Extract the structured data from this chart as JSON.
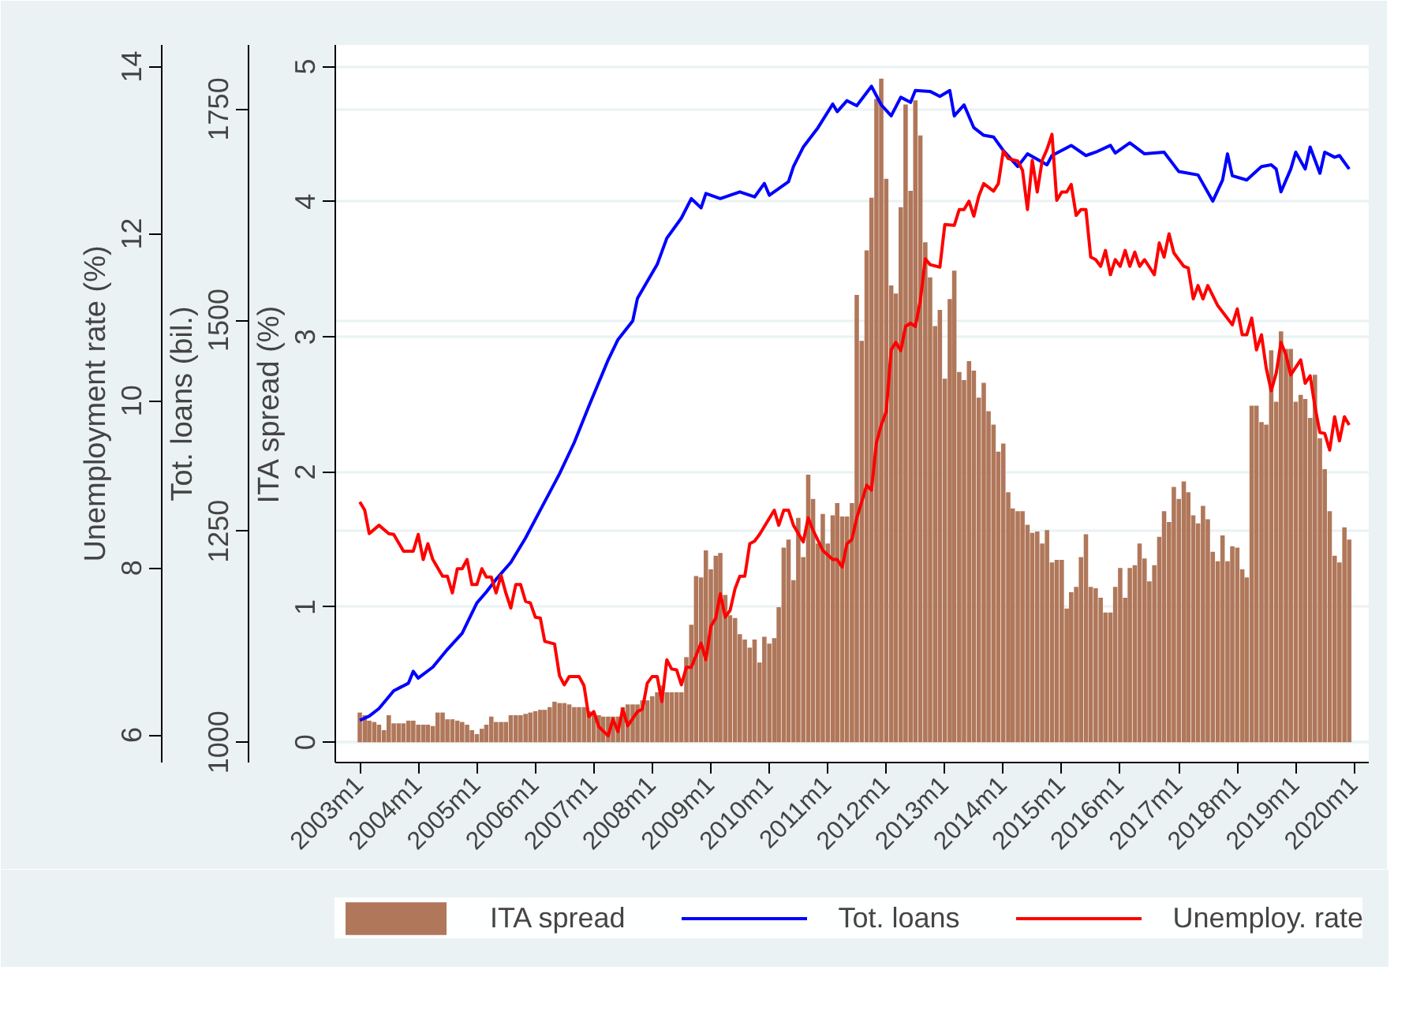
{
  "chart_data": {
    "type": "bar",
    "x": [
      "2003-01",
      "2003-02",
      "2003-03",
      "2003-04",
      "2003-05",
      "2003-06",
      "2003-07",
      "2003-08",
      "2003-09",
      "2003-10",
      "2003-11",
      "2003-12",
      "2004-01",
      "2004-02",
      "2004-03",
      "2004-04",
      "2004-05",
      "2004-06",
      "2004-07",
      "2004-08",
      "2004-09",
      "2004-10",
      "2004-11",
      "2004-12",
      "2005-01",
      "2005-02",
      "2005-03",
      "2005-04",
      "2005-05",
      "2005-06",
      "2005-07",
      "2005-08",
      "2005-09",
      "2005-10",
      "2005-11",
      "2005-12",
      "2006-01",
      "2006-02",
      "2006-03",
      "2006-04",
      "2006-05",
      "2006-06",
      "2006-07",
      "2006-08",
      "2006-09",
      "2006-10",
      "2006-11",
      "2006-12",
      "2007-01",
      "2007-02",
      "2007-03",
      "2007-04",
      "2007-05",
      "2007-06",
      "2007-07",
      "2007-08",
      "2007-09",
      "2007-10",
      "2007-11",
      "2007-12",
      "2008-01",
      "2008-02",
      "2008-03",
      "2008-04",
      "2008-05",
      "2008-06",
      "2008-07",
      "2008-08",
      "2008-09",
      "2008-10",
      "2008-11",
      "2008-12",
      "2009-01",
      "2009-02",
      "2009-03",
      "2009-04",
      "2009-05",
      "2009-06",
      "2009-07",
      "2009-08",
      "2009-09",
      "2009-10",
      "2009-11",
      "2009-12",
      "2010-01",
      "2010-02",
      "2010-03",
      "2010-04",
      "2010-05",
      "2010-06",
      "2010-07",
      "2010-08",
      "2010-09",
      "2010-10",
      "2010-11",
      "2010-12",
      "2011-01",
      "2011-02",
      "2011-03",
      "2011-04",
      "2011-05",
      "2011-06",
      "2011-07",
      "2011-08",
      "2011-09",
      "2011-10",
      "2011-11",
      "2011-12",
      "2012-01",
      "2012-02",
      "2012-03",
      "2012-04",
      "2012-05",
      "2012-06",
      "2012-07",
      "2012-08",
      "2012-09",
      "2012-10",
      "2012-11",
      "2012-12",
      "2013-01",
      "2013-02",
      "2013-03",
      "2013-04",
      "2013-05",
      "2013-06",
      "2013-07",
      "2013-08",
      "2013-09",
      "2013-10",
      "2013-11",
      "2013-12",
      "2014-01",
      "2014-02",
      "2014-03",
      "2014-04",
      "2014-05",
      "2014-06",
      "2014-07",
      "2014-08",
      "2014-09",
      "2014-10",
      "2014-11",
      "2014-12",
      "2015-01",
      "2015-02",
      "2015-03",
      "2015-04",
      "2015-05",
      "2015-06",
      "2015-07",
      "2015-08",
      "2015-09",
      "2015-10",
      "2015-11",
      "2015-12",
      "2016-01",
      "2016-02",
      "2016-03",
      "2016-04",
      "2016-05",
      "2016-06",
      "2016-07",
      "2016-08",
      "2016-09",
      "2016-10",
      "2016-11",
      "2016-12",
      "2017-01",
      "2017-02",
      "2017-03",
      "2017-04",
      "2017-05",
      "2017-06",
      "2017-07",
      "2017-08",
      "2017-09",
      "2017-10",
      "2017-11",
      "2017-12",
      "2018-01",
      "2018-02",
      "2018-03",
      "2018-04",
      "2018-05",
      "2018-06",
      "2018-07",
      "2018-08",
      "2018-09",
      "2018-10",
      "2018-11",
      "2018-12",
      "2019-01",
      "2019-02",
      "2019-03",
      "2019-04",
      "2019-05",
      "2019-06",
      "2019-07",
      "2019-08",
      "2019-09",
      "2019-10",
      "2019-11",
      "2019-12"
    ],
    "series": [
      {
        "name": "ITA spread",
        "color": "#b0775a",
        "values": [
          0.22,
          0.2,
          0.16,
          0.15,
          0.13,
          0.09,
          0.2,
          0.14,
          0.14,
          0.14,
          0.16,
          0.16,
          0.13,
          0.13,
          0.13,
          0.12,
          0.22,
          0.22,
          0.17,
          0.17,
          0.16,
          0.15,
          0.13,
          0.09,
          0.06,
          0.1,
          0.13,
          0.19,
          0.15,
          0.15,
          0.15,
          0.2,
          0.2,
          0.2,
          0.21,
          0.22,
          0.23,
          0.24,
          0.24,
          0.26,
          0.3,
          0.29,
          0.29,
          0.28,
          0.26,
          0.26,
          0.26,
          0.23,
          0.2,
          0.2,
          0.19,
          0.19,
          0.19,
          0.19,
          0.26,
          0.28,
          0.28,
          0.28,
          0.31,
          0.31,
          0.34,
          0.37,
          0.42,
          0.37,
          0.37,
          0.37,
          0.37,
          0.63,
          0.87,
          1.23,
          1.22,
          1.42,
          1.28,
          1.38,
          1.4,
          1.09,
          0.94,
          0.92,
          0.8,
          0.76,
          0.7,
          0.76,
          0.59,
          0.78,
          0.73,
          0.77,
          1.0,
          1.44,
          1.5,
          1.2,
          1.66,
          1.37,
          1.98,
          1.8,
          1.47,
          1.69,
          1.47,
          1.68,
          1.77,
          1.67,
          1.67,
          1.77,
          3.31,
          2.97,
          3.64,
          4.03,
          4.76,
          4.91,
          4.17,
          3.38,
          3.32,
          3.96,
          4.72,
          4.08,
          4.75,
          4.49,
          3.7,
          3.44,
          3.08,
          3.2,
          2.69,
          3.28,
          3.49,
          2.74,
          2.68,
          2.82,
          2.75,
          2.55,
          2.66,
          2.45,
          2.35,
          2.15,
          2.21,
          1.85,
          1.73,
          1.71,
          1.71,
          1.61,
          1.55,
          1.56,
          1.47,
          1.57,
          1.33,
          1.35,
          1.35,
          0.99,
          1.11,
          1.15,
          1.37,
          1.54,
          1.15,
          1.14,
          1.07,
          0.96,
          0.96,
          1.15,
          1.29,
          1.07,
          1.29,
          1.31,
          1.47,
          1.36,
          1.19,
          1.31,
          1.52,
          1.71,
          1.63,
          1.89,
          1.8,
          1.93,
          1.85,
          1.68,
          1.62,
          1.75,
          1.65,
          1.41,
          1.34,
          1.53,
          1.34,
          1.45,
          1.44,
          1.28,
          1.22,
          2.49,
          2.49,
          2.37,
          2.35,
          2.9,
          2.52,
          3.04,
          2.91,
          2.91,
          2.52,
          2.57,
          2.54,
          2.4,
          2.72,
          2.25,
          2.02,
          1.71,
          1.38,
          1.33,
          1.59,
          1.5
        ]
      },
      {
        "name": "Tot. loans",
        "type": "line",
        "axis": "y2",
        "color": "#0000ff",
        "x": [
          "2003-01",
          "2003-03",
          "2003-05",
          "2003-08",
          "2003-11",
          "2003-12",
          "2004-01",
          "2004-04",
          "2004-07",
          "2004-10",
          "2005-01",
          "2005-03",
          "2005-05",
          "2005-08",
          "2005-11",
          "2006-02",
          "2006-06",
          "2006-09",
          "2006-12",
          "2007-04",
          "2007-06",
          "2007-09",
          "2007-10",
          "2008-02",
          "2008-04",
          "2008-07",
          "2008-09",
          "2008-11",
          "2008-12",
          "2009-03",
          "2009-07",
          "2009-10",
          "2009-12",
          "2010-01",
          "2010-05",
          "2010-06",
          "2010-08",
          "2010-11",
          "2011-02",
          "2011-03",
          "2011-05",
          "2011-07",
          "2011-10",
          "2011-12",
          "2012-02",
          "2012-04",
          "2012-06",
          "2012-07",
          "2012-10",
          "2012-12",
          "2013-02",
          "2013-03",
          "2013-05",
          "2013-07",
          "2013-09",
          "2013-11",
          "2014-01",
          "2014-04",
          "2014-06",
          "2014-10",
          "2014-11",
          "2015-03",
          "2015-06",
          "2015-08",
          "2015-11",
          "2015-12",
          "2016-03",
          "2016-06",
          "2016-10",
          "2017-01",
          "2017-05",
          "2017-08",
          "2017-10",
          "2017-11",
          "2017-12",
          "2018-03",
          "2018-06",
          "2018-08",
          "2018-09",
          "2018-10",
          "2018-12",
          "2019-01",
          "2019-03",
          "2019-04",
          "2019-06",
          "2019-07",
          "2019-09",
          "2019-10",
          "2019-12"
        ],
        "values": [
          1026,
          1031,
          1040,
          1061,
          1070,
          1084,
          1076,
          1089,
          1110,
          1129,
          1165,
          1178,
          1193,
          1213,
          1242,
          1275,
          1318,
          1355,
          1398,
          1453,
          1477,
          1499,
          1526,
          1566,
          1597,
          1621,
          1644,
          1633,
          1650,
          1644,
          1652,
          1646,
          1662,
          1648,
          1664,
          1682,
          1705,
          1728,
          1756,
          1747,
          1760,
          1754,
          1777,
          1755,
          1742,
          1764,
          1758,
          1772,
          1771,
          1765,
          1772,
          1742,
          1755,
          1728,
          1719,
          1717,
          1701,
          1682,
          1697,
          1684,
          1695,
          1707,
          1695,
          1699,
          1707,
          1698,
          1710,
          1697,
          1699,
          1676,
          1672,
          1641,
          1666,
          1697,
          1671,
          1666,
          1682,
          1684,
          1679,
          1652,
          1679,
          1699,
          1679,
          1705,
          1674,
          1699,
          1693,
          1695,
          1679
        ]
      },
      {
        "name": "Unemploy. rate",
        "type": "line",
        "axis": "y3",
        "color": "#ff0000",
        "x": [
          "2003-01",
          "2003-02",
          "2003-03",
          "2003-05",
          "2003-07",
          "2003-08",
          "2003-10",
          "2003-12",
          "2004-01",
          "2004-02",
          "2004-03",
          "2004-04",
          "2004-06",
          "2004-07",
          "2004-08",
          "2004-09",
          "2004-10",
          "2004-11",
          "2004-12",
          "2005-01",
          "2005-02",
          "2005-03",
          "2005-04",
          "2005-05",
          "2005-06",
          "2005-07",
          "2005-08",
          "2005-09",
          "2005-10",
          "2005-11",
          "2005-12",
          "2006-01",
          "2006-02",
          "2006-03",
          "2006-05",
          "2006-06",
          "2006-07",
          "2006-08",
          "2006-10",
          "2006-11",
          "2006-12",
          "2007-01",
          "2007-02",
          "2007-04",
          "2007-05",
          "2007-06",
          "2007-07",
          "2007-08",
          "2007-10",
          "2007-11",
          "2007-12",
          "2008-01",
          "2008-02",
          "2008-03",
          "2008-04",
          "2008-05",
          "2008-06",
          "2008-07",
          "2008-08",
          "2008-09",
          "2008-11",
          "2008-12",
          "2009-01",
          "2009-02",
          "2009-03",
          "2009-04",
          "2009-05",
          "2009-06",
          "2009-07",
          "2009-08",
          "2009-09",
          "2009-10",
          "2009-11",
          "2010-02",
          "2010-03",
          "2010-04",
          "2010-05",
          "2010-06",
          "2010-08",
          "2010-09",
          "2010-10",
          "2010-12",
          "2011-02",
          "2011-03",
          "2011-04",
          "2011-05",
          "2011-06",
          "2011-07",
          "2011-08",
          "2011-09",
          "2011-10",
          "2011-11",
          "2011-12",
          "2012-01",
          "2012-02",
          "2012-03",
          "2012-04",
          "2012-05",
          "2012-06",
          "2012-07",
          "2012-08",
          "2012-09",
          "2012-10",
          "2012-12",
          "2013-01",
          "2013-03",
          "2013-04",
          "2013-05",
          "2013-06",
          "2013-07",
          "2013-08",
          "2013-09",
          "2013-11",
          "2013-12",
          "2014-01",
          "2014-02",
          "2014-04",
          "2014-05",
          "2014-06",
          "2014-07",
          "2014-08",
          "2014-09",
          "2014-10",
          "2014-11",
          "2014-12",
          "2015-01",
          "2015-02",
          "2015-03",
          "2015-04",
          "2015-05",
          "2015-06",
          "2015-07",
          "2015-08",
          "2015-09",
          "2015-10",
          "2015-11",
          "2015-12",
          "2016-01",
          "2016-02",
          "2016-03",
          "2016-04",
          "2016-05",
          "2016-06",
          "2016-08",
          "2016-09",
          "2016-10",
          "2016-11",
          "2016-12",
          "2017-02",
          "2017-03",
          "2017-04",
          "2017-05",
          "2017-06",
          "2017-07",
          "2017-09",
          "2017-12",
          "2018-01",
          "2018-02",
          "2018-03",
          "2018-04",
          "2018-05",
          "2018-06",
          "2018-07",
          "2018-08",
          "2018-09",
          "2018-10",
          "2018-11",
          "2018-12",
          "2019-02",
          "2019-03",
          "2019-04",
          "2019-05",
          "2019-06",
          "2019-07",
          "2019-08",
          "2019-09",
          "2019-10",
          "2019-11",
          "2019-12"
        ],
        "values": [
          8.79,
          8.69,
          8.41,
          8.51,
          8.41,
          8.4,
          8.2,
          8.2,
          8.4,
          8.1,
          8.29,
          8.1,
          7.9,
          7.9,
          7.7,
          7.99,
          7.99,
          8.1,
          7.8,
          7.8,
          7.99,
          7.89,
          7.89,
          7.7,
          7.91,
          7.7,
          7.52,
          7.8,
          7.8,
          7.6,
          7.58,
          7.41,
          7.4,
          7.12,
          7.09,
          6.71,
          6.6,
          6.7,
          6.7,
          6.59,
          6.22,
          6.28,
          6.1,
          5.99,
          6.19,
          6.04,
          6.31,
          6.11,
          6.28,
          6.31,
          6.62,
          6.7,
          6.7,
          6.4,
          6.9,
          6.79,
          6.78,
          6.6,
          6.81,
          6.81,
          7.1,
          6.9,
          7.3,
          7.4,
          7.69,
          7.41,
          7.49,
          7.75,
          7.9,
          7.9,
          8.29,
          8.32,
          8.4,
          8.69,
          8.51,
          8.69,
          8.69,
          8.51,
          8.31,
          8.6,
          8.45,
          8.21,
          8.1,
          8.1,
          8.01,
          8.29,
          8.34,
          8.6,
          8.79,
          8.99,
          8.93,
          9.5,
          9.71,
          9.87,
          10.61,
          10.7,
          10.6,
          10.89,
          10.93,
          10.89,
          11.2,
          11.7,
          11.63,
          11.6,
          12.11,
          12.1,
          12.29,
          12.29,
          12.39,
          12.21,
          12.45,
          12.6,
          12.51,
          12.6,
          12.99,
          12.9,
          12.87,
          12.76,
          12.29,
          12.88,
          12.5,
          12.88,
          13.01,
          13.19,
          12.4,
          12.5,
          12.5,
          12.59,
          12.22,
          12.29,
          12.29,
          11.72,
          11.69,
          11.61,
          11.8,
          11.51,
          11.69,
          11.61,
          11.8,
          11.61,
          11.78,
          11.61,
          11.69,
          11.51,
          11.89,
          11.72,
          12.0,
          11.77,
          11.61,
          11.59,
          11.22,
          11.38,
          11.22,
          11.38,
          11.14,
          10.91,
          11.1,
          10.79,
          10.79,
          10.99,
          10.61,
          10.79,
          10.39,
          10.12,
          10.33,
          10.7,
          10.55,
          10.31,
          10.49,
          10.21,
          10.3,
          9.93,
          9.62,
          9.61,
          9.41,
          9.81,
          9.52,
          9.81,
          9.71
        ]
      }
    ],
    "ylabel": "ITA spread (%)",
    "y2label": "Tot. loans (bil.)",
    "y3label": "Unemployment rate (%)",
    "xlim": [
      "2002-08",
      "2020-04"
    ],
    "xticks": [
      {
        "value": "2003-01",
        "label": "2003m1"
      },
      {
        "value": "2004-01",
        "label": "2004m1"
      },
      {
        "value": "2005-01",
        "label": "2005m1"
      },
      {
        "value": "2006-01",
        "label": "2006m1"
      },
      {
        "value": "2007-01",
        "label": "2007m1"
      },
      {
        "value": "2008-01",
        "label": "2008m1"
      },
      {
        "value": "2009-01",
        "label": "2009m1"
      },
      {
        "value": "2010-01",
        "label": "2010m1"
      },
      {
        "value": "2011-01",
        "label": "2011m1"
      },
      {
        "value": "2012-01",
        "label": "2012m1"
      },
      {
        "value": "2013-01",
        "label": "2013m1"
      },
      {
        "value": "2014-01",
        "label": "2014m1"
      },
      {
        "value": "2015-01",
        "label": "2015m1"
      },
      {
        "value": "2016-01",
        "label": "2016m1"
      },
      {
        "value": "2017-01",
        "label": "2017m1"
      },
      {
        "value": "2018-01",
        "label": "2018m1"
      },
      {
        "value": "2019-01",
        "label": "2019m1"
      },
      {
        "value": "2020-01",
        "label": "2020m1"
      }
    ],
    "ylim": [
      -0.15,
      5.16
    ],
    "yticks": [
      0,
      1,
      2,
      3,
      4,
      5
    ],
    "y2lim": [
      976,
      1826
    ],
    "y2ticks": [
      1000,
      1250,
      1500,
      1750
    ],
    "y3lim": [
      5.67,
      14.26
    ],
    "y3ticks": [
      6,
      8,
      10,
      12,
      14
    ],
    "grid": "y",
    "legend": "bottom"
  }
}
